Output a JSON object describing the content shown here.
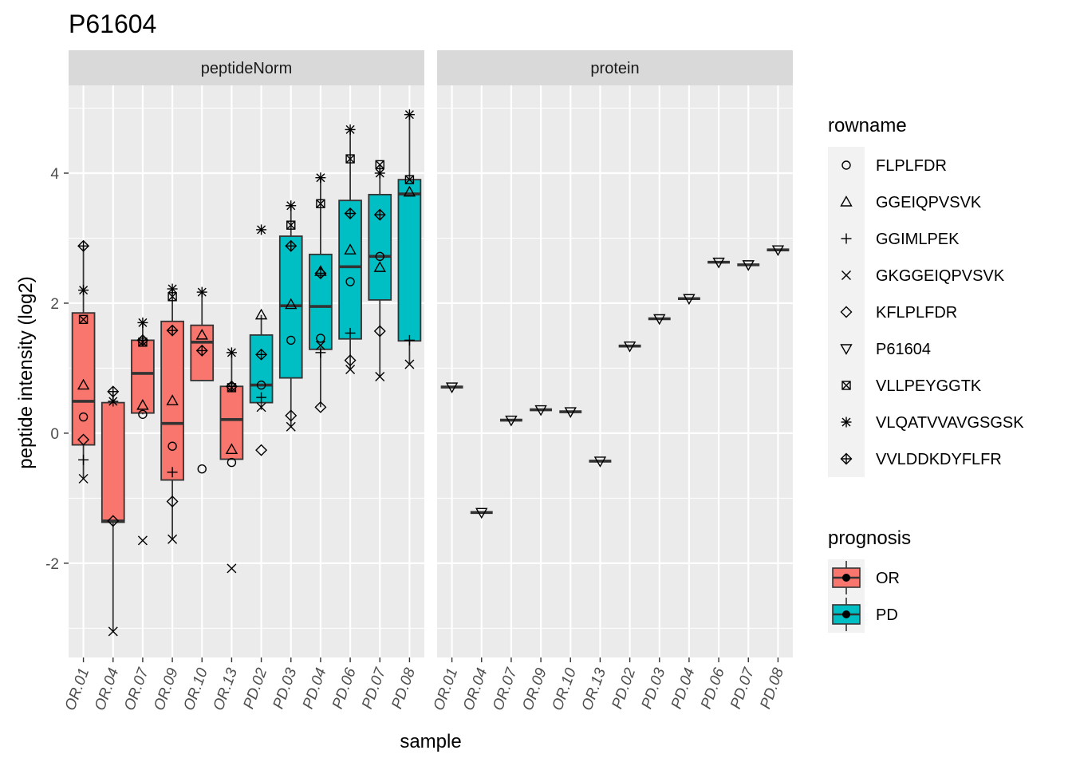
{
  "chart_data": {
    "type": "boxplot",
    "title": "P61604",
    "xlabel": "sample",
    "ylabel": "peptide intensity (log2)",
    "ylim": [
      -3.45,
      5.35
    ],
    "yticks": [
      -2,
      0,
      2,
      4
    ],
    "grid": true,
    "categories": [
      "OR.01",
      "OR.04",
      "OR.07",
      "OR.09",
      "OR.10",
      "OR.13",
      "PD.02",
      "PD.03",
      "PD.04",
      "PD.06",
      "PD.07",
      "PD.08"
    ],
    "colors": {
      "OR": "#F8766D",
      "PD": "#00BFC4"
    },
    "legend_placement": "right",
    "shape_legend": {
      "title": "rowname",
      "items": [
        {
          "label": "FLPLFDR",
          "shape": "circle"
        },
        {
          "label": "GGEIQPVSVK",
          "shape": "triangle"
        },
        {
          "label": "GGIMLPEK",
          "shape": "plus"
        },
        {
          "label": "GKGGEIQPVSVK",
          "shape": "cross"
        },
        {
          "label": "KFLPLFDR",
          "shape": "diamond"
        },
        {
          "label": "P61604",
          "shape": "triangle-down"
        },
        {
          "label": "VLLPEYGGTK",
          "shape": "square-x"
        },
        {
          "label": "VLQATVVAVGSGSK",
          "shape": "asterisk"
        },
        {
          "label": "VVLDDKDYFLFR",
          "shape": "diamond-plus"
        }
      ]
    },
    "fill_legend": {
      "title": "prognosis",
      "items": [
        {
          "label": "OR",
          "color": "#F8766D"
        },
        {
          "label": "PD",
          "color": "#00BFC4"
        }
      ]
    },
    "panels": [
      {
        "strip": "peptideNorm",
        "groups": [
          {
            "sample": "OR.01",
            "prognosis": "OR",
            "box": {
              "whisker_low": -0.7,
              "q1": -0.18,
              "median": 0.49,
              "q3": 1.85,
              "whisker_high": 2.88
            },
            "points": {
              "FLPLFDR": 0.25,
              "GGEIQPVSVK": 0.74,
              "GGIMLPEK": -0.41,
              "GKGGEIQPVSVK": -0.7,
              "KFLPLFDR": -0.1,
              "VLLPEYGGTK": 1.75,
              "VLQATVVAVGSGSK": 2.2,
              "VVLDDKDYFLFR": 2.88
            }
          },
          {
            "sample": "OR.04",
            "prognosis": "OR",
            "box": {
              "whisker_low": -3.05,
              "q1": -1.37,
              "median": -1.35,
              "q3": 0.47,
              "whisker_high": 0.64
            },
            "points": {
              "GKGGEIQPVSVK": -3.05,
              "KFLPLFDR": -1.35,
              "VLQATVVAVGSGSK": 0.49,
              "VVLDDKDYFLFR": 0.64
            }
          },
          {
            "sample": "OR.07",
            "prognosis": "OR",
            "box": {
              "whisker_low": 0.29,
              "q1": 0.31,
              "median": 0.92,
              "q3": 1.43,
              "whisker_high": 1.7
            },
            "points": {
              "FLPLFDR": 0.29,
              "GGEIQPVSVK": 0.43,
              "GKGGEIQPVSVK": -1.65,
              "VLLPEYGGTK": 1.4,
              "VLQATVVAVGSGSK": 1.7,
              "VVLDDKDYFLFR": 1.43
            }
          },
          {
            "sample": "OR.09",
            "prognosis": "OR",
            "box": {
              "whisker_low": -1.63,
              "q1": -0.72,
              "median": 0.15,
              "q3": 1.72,
              "whisker_high": 2.22
            },
            "points": {
              "FLPLFDR": -0.2,
              "GGEIQPVSVK": 0.5,
              "GGIMLPEK": -0.6,
              "GKGGEIQPVSVK": -1.63,
              "KFLPLFDR": -1.05,
              "VLLPEYGGTK": 2.1,
              "VLQATVVAVGSGSK": 2.22,
              "VVLDDKDYFLFR": 1.58
            }
          },
          {
            "sample": "OR.10",
            "prognosis": "OR",
            "box": {
              "whisker_low": 0.8,
              "q1": 0.81,
              "median": 1.4,
              "q3": 1.66,
              "whisker_high": 2.17
            },
            "points": {
              "FLPLFDR": -0.55,
              "GGEIQPVSVK": 1.51,
              "VLQATVVAVGSGSK": 2.17,
              "VVLDDKDYFLFR": 1.27
            }
          },
          {
            "sample": "OR.13",
            "prognosis": "OR",
            "box": {
              "whisker_low": -0.4,
              "q1": -0.4,
              "median": 0.21,
              "q3": 0.72,
              "whisker_high": 1.24
            },
            "points": {
              "FLPLFDR": -0.45,
              "GGEIQPVSVK": -0.25,
              "GKGGEIQPVSVK": -2.08,
              "VLLPEYGGTK": 0.7,
              "VLQATVVAVGSGSK": 1.24,
              "VVLDDKDYFLFR": 0.72
            }
          },
          {
            "sample": "PD.02",
            "prognosis": "PD",
            "box": {
              "whisker_low": 0.36,
              "q1": 0.47,
              "median": 0.74,
              "q3": 1.51,
              "whisker_high": 1.82
            },
            "points": {
              "FLPLFDR": 0.74,
              "GGEIQPVSVK": 1.82,
              "GGIMLPEK": 0.55,
              "GKGGEIQPVSVK": 0.4,
              "KFLPLFDR": -0.26,
              "VLQATVVAVGSGSK": 3.13,
              "VVLDDKDYFLFR": 1.21
            }
          },
          {
            "sample": "PD.03",
            "prognosis": "PD",
            "box": {
              "whisker_low": 0.1,
              "q1": 0.85,
              "median": 1.96,
              "q3": 3.03,
              "whisker_high": 3.5
            },
            "points": {
              "FLPLFDR": 1.43,
              "GGEIQPVSVK": 1.98,
              "GKGGEIQPVSVK": 0.1,
              "KFLPLFDR": 0.27,
              "VLLPEYGGTK": 3.2,
              "VLQATVVAVGSGSK": 3.5,
              "VVLDDKDYFLFR": 2.88
            }
          },
          {
            "sample": "PD.04",
            "prognosis": "PD",
            "box": {
              "whisker_low": 0.4,
              "q1": 1.29,
              "median": 1.95,
              "q3": 2.75,
              "whisker_high": 3.93
            },
            "points": {
              "FLPLFDR": 1.46,
              "GGEIQPVSVK": 2.49,
              "GGIMLPEK": 1.24,
              "GKGGEIQPVSVK": 1.35,
              "KFLPLFDR": 0.4,
              "VLLPEYGGTK": 3.53,
              "VLQATVVAVGSGSK": 3.93,
              "VVLDDKDYFLFR": 2.46
            }
          },
          {
            "sample": "PD.06",
            "prognosis": "PD",
            "box": {
              "whisker_low": 0.98,
              "q1": 1.45,
              "median": 2.56,
              "q3": 3.58,
              "whisker_high": 4.67
            },
            "points": {
              "FLPLFDR": 2.33,
              "GGEIQPVSVK": 2.82,
              "GGIMLPEK": 1.54,
              "GKGGEIQPVSVK": 0.98,
              "KFLPLFDR": 1.12,
              "VLLPEYGGTK": 4.22,
              "VLQATVVAVGSGSK": 4.67,
              "VVLDDKDYFLFR": 3.38
            }
          },
          {
            "sample": "PD.07",
            "prognosis": "PD",
            "box": {
              "whisker_low": 0.87,
              "q1": 2.05,
              "median": 2.72,
              "q3": 3.67,
              "whisker_high": 4.13
            },
            "points": {
              "FLPLFDR": 2.72,
              "GGEIQPVSVK": 2.55,
              "GKGGEIQPVSVK": 0.87,
              "KFLPLFDR": 1.57,
              "VLLPEYGGTK": 4.13,
              "VLQATVVAVGSGSK": 4.0,
              "VVLDDKDYFLFR": 3.36
            }
          },
          {
            "sample": "PD.08",
            "prognosis": "PD",
            "box": {
              "whisker_low": 1.06,
              "q1": 1.42,
              "median": 3.68,
              "q3": 3.9,
              "whisker_high": 4.9
            },
            "points": {
              "GGEIQPVSVK": 3.71,
              "GGIMLPEK": 1.43,
              "GKGGEIQPVSVK": 1.06,
              "VLLPEYGGTK": 3.9,
              "VLQATVVAVGSGSK": 4.9
            }
          }
        ]
      },
      {
        "strip": "protein",
        "groups": [
          {
            "sample": "OR.01",
            "prognosis": "OR",
            "box": {
              "whisker_low": 0.71,
              "q1": 0.71,
              "median": 0.71,
              "q3": 0.71,
              "whisker_high": 0.71
            },
            "points": {
              "P61604": 0.71
            }
          },
          {
            "sample": "OR.04",
            "prognosis": "OR",
            "box": {
              "whisker_low": -1.22,
              "q1": -1.22,
              "median": -1.22,
              "q3": -1.22,
              "whisker_high": -1.22
            },
            "points": {
              "P61604": -1.22
            }
          },
          {
            "sample": "OR.07",
            "prognosis": "OR",
            "box": {
              "whisker_low": 0.2,
              "q1": 0.2,
              "median": 0.2,
              "q3": 0.2,
              "whisker_high": 0.2
            },
            "points": {
              "P61604": 0.2
            }
          },
          {
            "sample": "OR.09",
            "prognosis": "OR",
            "box": {
              "whisker_low": 0.36,
              "q1": 0.36,
              "median": 0.36,
              "q3": 0.36,
              "whisker_high": 0.36
            },
            "points": {
              "P61604": 0.36
            }
          },
          {
            "sample": "OR.10",
            "prognosis": "OR",
            "box": {
              "whisker_low": 0.33,
              "q1": 0.33,
              "median": 0.33,
              "q3": 0.33,
              "whisker_high": 0.33
            },
            "points": {
              "P61604": 0.33
            }
          },
          {
            "sample": "OR.13",
            "prognosis": "OR",
            "box": {
              "whisker_low": -0.43,
              "q1": -0.43,
              "median": -0.43,
              "q3": -0.43,
              "whisker_high": -0.43
            },
            "points": {
              "P61604": -0.43
            }
          },
          {
            "sample": "PD.02",
            "prognosis": "PD",
            "box": {
              "whisker_low": 1.34,
              "q1": 1.34,
              "median": 1.34,
              "q3": 1.34,
              "whisker_high": 1.34
            },
            "points": {
              "P61604": 1.34
            }
          },
          {
            "sample": "PD.03",
            "prognosis": "PD",
            "box": {
              "whisker_low": 1.76,
              "q1": 1.76,
              "median": 1.76,
              "q3": 1.76,
              "whisker_high": 1.76
            },
            "points": {
              "P61604": 1.76
            }
          },
          {
            "sample": "PD.04",
            "prognosis": "PD",
            "box": {
              "whisker_low": 2.07,
              "q1": 2.07,
              "median": 2.07,
              "q3": 2.07,
              "whisker_high": 2.07
            },
            "points": {
              "P61604": 2.07
            }
          },
          {
            "sample": "PD.06",
            "prognosis": "PD",
            "box": {
              "whisker_low": 2.63,
              "q1": 2.63,
              "median": 2.63,
              "q3": 2.63,
              "whisker_high": 2.63
            },
            "points": {
              "P61604": 2.63
            }
          },
          {
            "sample": "PD.07",
            "prognosis": "PD",
            "box": {
              "whisker_low": 2.59,
              "q1": 2.59,
              "median": 2.59,
              "q3": 2.59,
              "whisker_high": 2.59
            },
            "points": {
              "P61604": 2.59
            }
          },
          {
            "sample": "PD.08",
            "prognosis": "PD",
            "box": {
              "whisker_low": 2.82,
              "q1": 2.82,
              "median": 2.82,
              "q3": 2.82,
              "whisker_high": 2.82
            },
            "points": {
              "P61604": 2.82
            }
          }
        ]
      }
    ]
  }
}
